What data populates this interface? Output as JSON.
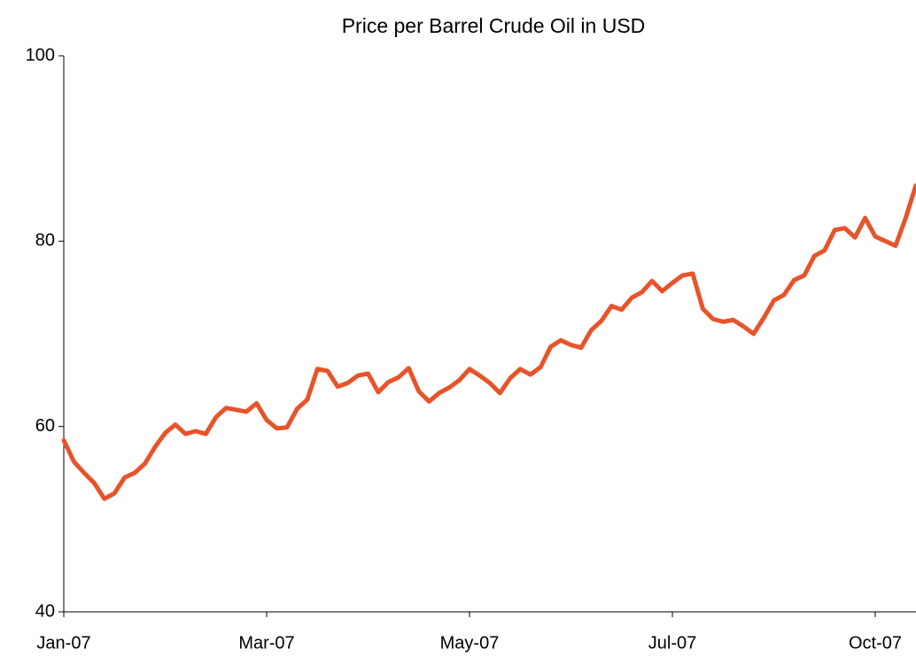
{
  "chart_data": {
    "type": "line",
    "title": "Price per Barrel Crude Oil in USD",
    "categories": [
      "Jan-07",
      null,
      null,
      null,
      null,
      null,
      null,
      null,
      null,
      null,
      null,
      null,
      null,
      null,
      null,
      null,
      null,
      null,
      null,
      null,
      "Mar-07",
      null,
      null,
      null,
      null,
      null,
      null,
      null,
      null,
      null,
      null,
      null,
      null,
      null,
      null,
      null,
      null,
      null,
      null,
      null,
      "May-07",
      null,
      null,
      null,
      null,
      null,
      null,
      null,
      null,
      null,
      null,
      null,
      null,
      null,
      null,
      null,
      null,
      null,
      null,
      null,
      "Jul-07",
      null,
      null,
      null,
      null,
      null,
      null,
      null,
      null,
      null,
      null,
      null,
      null,
      null,
      null,
      null,
      null,
      null,
      null,
      null,
      "Oct-07",
      null,
      null,
      null,
      null
    ],
    "series": [
      {
        "name": "Crude Oil",
        "color": "#e8532a",
        "values": [
          58.5,
          56.2,
          55,
          53.9,
          52.2,
          52.8,
          54.5,
          55,
          56,
          57.8,
          59.3,
          60.2,
          59.2,
          59.5,
          59.2,
          61,
          62,
          61.8,
          61.6,
          62.5,
          60.7,
          59.8,
          59.9,
          61.9,
          62.9,
          66.2,
          66,
          64.3,
          64.7,
          65.5,
          65.7,
          63.7,
          64.8,
          65.3,
          66.3,
          63.8,
          62.7,
          63.6,
          64.2,
          65,
          66.2,
          65.5,
          64.7,
          63.6,
          65.2,
          66.2,
          65.6,
          66.4,
          68.6,
          69.3,
          68.8,
          68.5,
          70.4,
          71.4,
          73,
          72.6,
          73.9,
          74.5,
          75.7,
          74.6,
          75.5,
          76.3,
          76.5,
          72.7,
          71.6,
          71.3,
          71.5,
          70.8,
          70,
          71.7,
          73.6,
          74.2,
          75.8,
          76.3,
          78.4,
          79,
          81.2,
          81.4,
          80.4,
          82.5,
          80.5,
          80,
          79.5,
          82.5,
          86
        ]
      }
    ],
    "ylim": [
      40,
      100
    ],
    "yticks": [
      40,
      60,
      80,
      100
    ],
    "grid": false
  }
}
